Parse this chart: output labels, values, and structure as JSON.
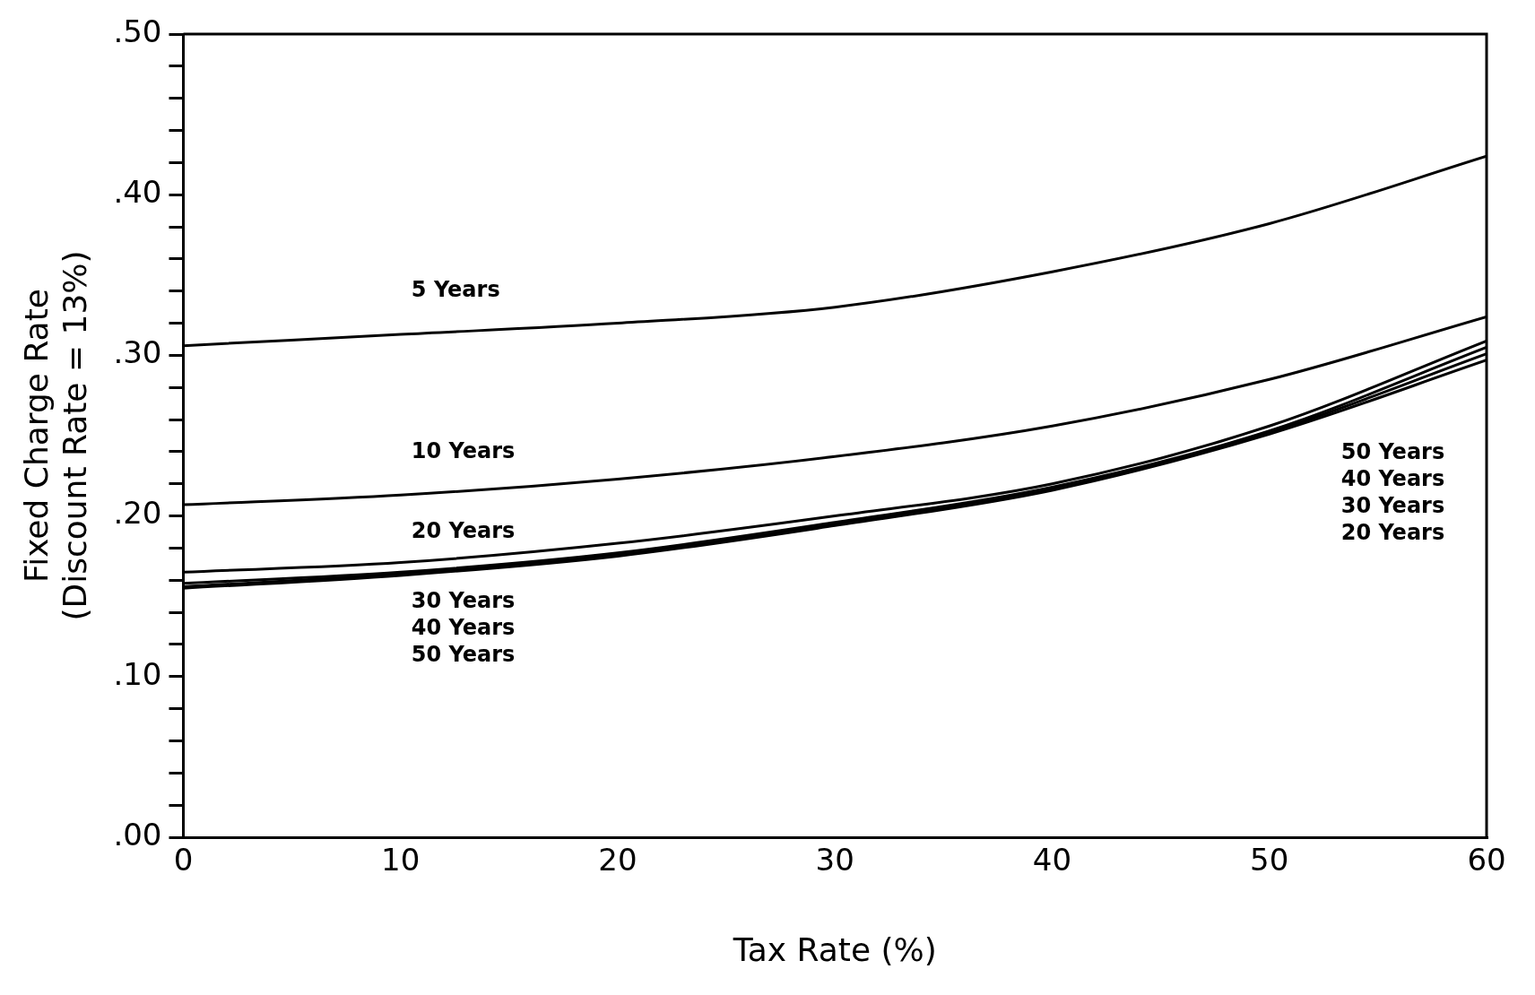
{
  "chart_data": {
    "type": "line",
    "xlabel": "Tax Rate (%)",
    "ylabel": "Fixed Charge Rate\n(Discount Rate = 13%)",
    "x": [
      0,
      10,
      20,
      30,
      40,
      50,
      60
    ],
    "series": [
      {
        "name": "5 Years",
        "color": "#000000",
        "values": [
          0.306,
          0.313,
          0.32,
          0.33,
          0.352,
          0.382,
          0.424
        ]
      },
      {
        "name": "10 Years",
        "color": "#000000",
        "values": [
          0.207,
          0.213,
          0.223,
          0.237,
          0.256,
          0.285,
          0.324
        ]
      },
      {
        "name": "20 Years",
        "color": "#000000",
        "values": [
          0.165,
          0.171,
          0.183,
          0.2,
          0.22,
          0.256,
          0.309
        ]
      },
      {
        "name": "30 Years",
        "color": "#000000",
        "values": [
          0.158,
          0.165,
          0.177,
          0.196,
          0.218,
          0.253,
          0.305
        ]
      },
      {
        "name": "40 Years",
        "color": "#000000",
        "values": [
          0.156,
          0.164,
          0.176,
          0.195,
          0.217,
          0.252,
          0.301
        ]
      },
      {
        "name": "50 Years",
        "color": "#000000",
        "values": [
          0.155,
          0.163,
          0.175,
          0.194,
          0.216,
          0.251,
          0.297
        ]
      }
    ],
    "xlim": [
      0,
      60
    ],
    "xticks": [
      0,
      10,
      20,
      30,
      40,
      50,
      60
    ],
    "ylim": [
      0,
      0.5
    ],
    "yticks": [
      {
        "value": 0,
        "label": ".00"
      },
      {
        "value": 0.02,
        "label": null
      },
      {
        "value": 0.04,
        "label": null
      },
      {
        "value": 0.06,
        "label": null
      },
      {
        "value": 0.08,
        "label": null
      },
      {
        "value": 0.1,
        "label": ".10"
      },
      {
        "value": 0.12,
        "label": null
      },
      {
        "value": 0.14,
        "label": null
      },
      {
        "value": 0.16,
        "label": null
      },
      {
        "value": 0.18,
        "label": null
      },
      {
        "value": 0.2,
        "label": ".20"
      },
      {
        "value": 0.22,
        "label": null
      },
      {
        "value": 0.24,
        "label": null
      },
      {
        "value": 0.26,
        "label": null
      },
      {
        "value": 0.28,
        "label": null
      },
      {
        "value": 0.3,
        "label": ".30"
      },
      {
        "value": 0.32,
        "label": null
      },
      {
        "value": 0.34,
        "label": null
      },
      {
        "value": 0.36,
        "label": null
      },
      {
        "value": 0.38,
        "label": null
      },
      {
        "value": 0.4,
        "label": ".40"
      },
      {
        "value": 0.42,
        "label": null
      },
      {
        "value": 0.44,
        "label": null
      },
      {
        "value": 0.46,
        "label": null
      },
      {
        "value": 0.48,
        "label": null
      },
      {
        "value": 0.5,
        "label": ".50"
      }
    ],
    "marker": "none",
    "line_style": "solid",
    "grid": false,
    "legend": false
  }
}
